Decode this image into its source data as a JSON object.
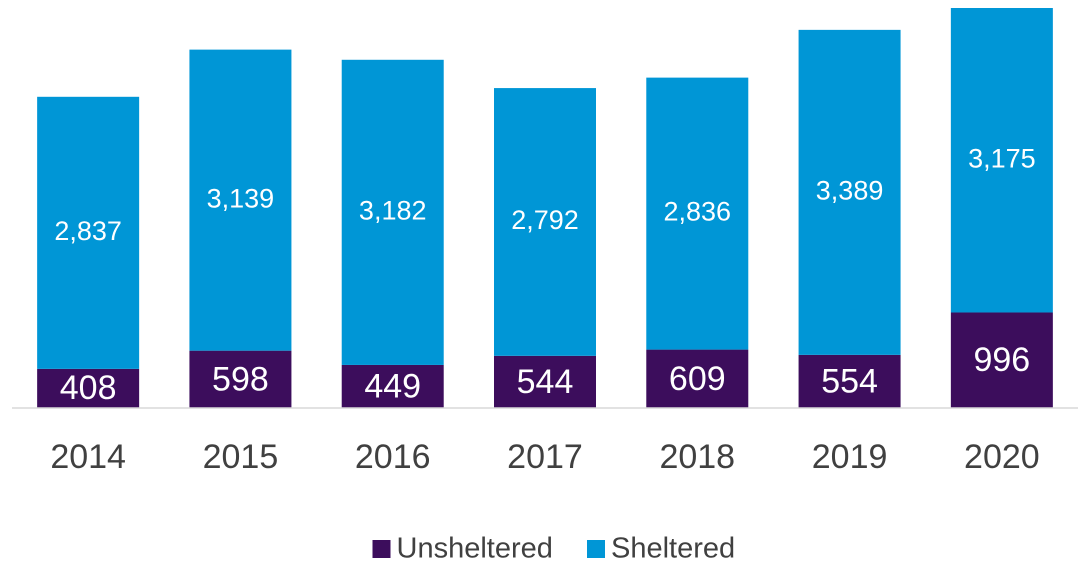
{
  "chart_data": {
    "type": "stacked_bar",
    "categories": [
      "2014",
      "2015",
      "2016",
      "2017",
      "2018",
      "2019",
      "2020"
    ],
    "series": [
      {
        "name": "Unsheltered",
        "color": "#3c0d5c",
        "values": [
          408,
          598,
          449,
          544,
          609,
          554,
          996
        ]
      },
      {
        "name": "Sheltered",
        "color": "#0096d6",
        "values": [
          2837,
          3139,
          3182,
          2792,
          2836,
          3389,
          3175
        ],
        "value_labels": [
          "2,837",
          "3,139",
          "3,182",
          "2,792",
          "2,836",
          "3,389",
          "3,175"
        ]
      }
    ],
    "legend": "bottom"
  }
}
